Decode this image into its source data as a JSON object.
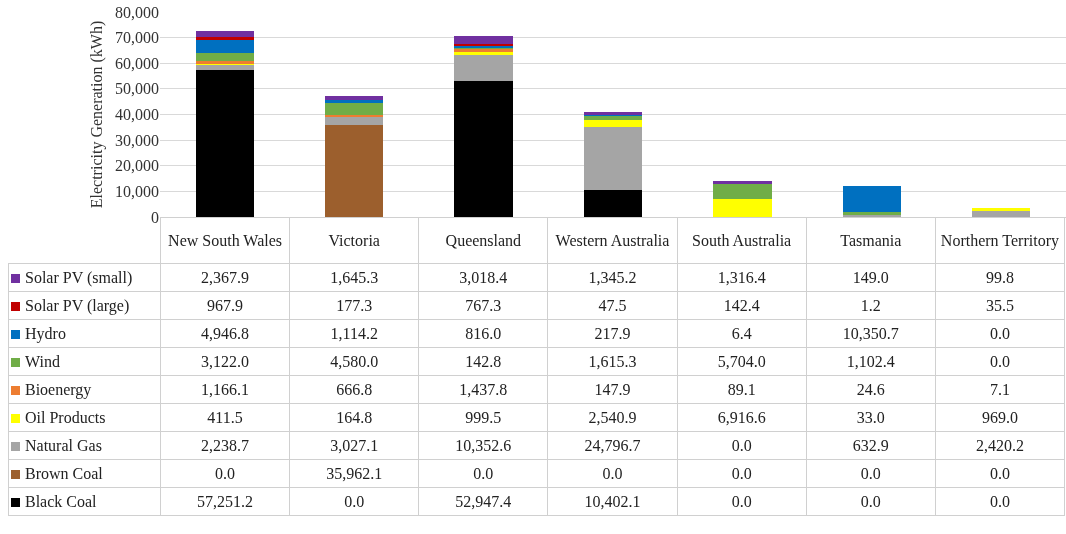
{
  "chart_data": {
    "type": "bar",
    "stacked": true,
    "ylabel": "Electricity Generation (kWh)",
    "categories": [
      "New South Wales",
      "Victoria",
      "Queensland",
      "Western Australia",
      "South Australia",
      "Tasmania",
      "Northern Territory"
    ],
    "ylim": [
      0,
      80000
    ],
    "yticks": [
      0,
      {
        "value": 10000,
        "label": "10,000"
      },
      {
        "value": 20000,
        "label": "20,000"
      },
      {
        "value": 30000,
        "label": "30,000"
      },
      {
        "value": 40000,
        "label": "40,000"
      },
      {
        "value": 50000,
        "label": "50,000"
      },
      {
        "value": 60000,
        "label": "60,000"
      },
      {
        "value": 70000,
        "label": "70,000"
      },
      {
        "value": 80000,
        "label": "80,000"
      }
    ],
    "grid": "y",
    "legend": "bottom",
    "tick_labels": "y",
    "series": [
      {
        "name": "Black Coal",
        "color": "#000000",
        "values": [
          57251.2,
          0.0,
          52947.4,
          10402.1,
          0.0,
          0.0,
          0.0
        ],
        "value_labels": [
          "57,251.2",
          "0.0",
          "52,947.4",
          "10,402.1",
          "0.0",
          "0.0",
          "0.0"
        ]
      },
      {
        "name": "Brown Coal",
        "color": "#9c5f2d",
        "values": [
          0.0,
          35962.1,
          0.0,
          0.0,
          0.0,
          0.0,
          0.0
        ],
        "value_labels": [
          "0.0",
          "35,962.1",
          "0.0",
          "0.0",
          "0.0",
          "0.0",
          "0.0"
        ]
      },
      {
        "name": "Natural Gas",
        "color": "#a5a5a5",
        "values": [
          2238.7,
          3027.1,
          10352.6,
          24796.7,
          0.0,
          632.9,
          2420.2
        ],
        "value_labels": [
          "2,238.7",
          "3,027.1",
          "10,352.6",
          "24,796.7",
          "0.0",
          "632.9",
          "2,420.2"
        ]
      },
      {
        "name": "Oil Products",
        "color": "#ffff00",
        "values": [
          411.5,
          164.8,
          999.5,
          2540.9,
          6916.6,
          33.0,
          969.0
        ],
        "value_labels": [
          "411.5",
          "164.8",
          "999.5",
          "2,540.9",
          "6,916.6",
          "33.0",
          "969.0"
        ]
      },
      {
        "name": "Bioenergy",
        "color": "#ed7d31",
        "values": [
          1166.1,
          666.8,
          1437.8,
          147.9,
          89.1,
          24.6,
          7.1
        ],
        "value_labels": [
          "1,166.1",
          "666.8",
          "1,437.8",
          "147.9",
          "89.1",
          "24.6",
          "7.1"
        ]
      },
      {
        "name": "Wind",
        "color": "#70ad47",
        "values": [
          3122.0,
          4580.0,
          142.8,
          1615.3,
          5704.0,
          1102.4,
          0.0
        ],
        "value_labels": [
          "3,122.0",
          "4,580.0",
          "142.8",
          "1,615.3",
          "5,704.0",
          "1,102.4",
          "0.0"
        ]
      },
      {
        "name": "Hydro",
        "color": "#0070c0",
        "values": [
          4946.8,
          1114.2,
          816.0,
          217.9,
          6.4,
          10350.7,
          0.0
        ],
        "value_labels": [
          "4,946.8",
          "1,114.2",
          "816.0",
          "217.9",
          "6.4",
          "10,350.7",
          "0.0"
        ]
      },
      {
        "name": "Solar PV (large)",
        "color": "#c00000",
        "values": [
          967.9,
          177.3,
          767.3,
          47.5,
          142.4,
          1.2,
          35.5
        ],
        "value_labels": [
          "967.9",
          "177.3",
          "767.3",
          "47.5",
          "142.4",
          "1.2",
          "35.5"
        ]
      },
      {
        "name": "Solar PV (small)",
        "color": "#7030a0",
        "values": [
          2367.9,
          1645.3,
          3018.4,
          1345.2,
          1316.4,
          149.0,
          99.8
        ],
        "value_labels": [
          "2,367.9",
          "1,645.3",
          "3,018.4",
          "1,345.2",
          "1,316.4",
          "149.0",
          "99.8"
        ]
      }
    ]
  }
}
